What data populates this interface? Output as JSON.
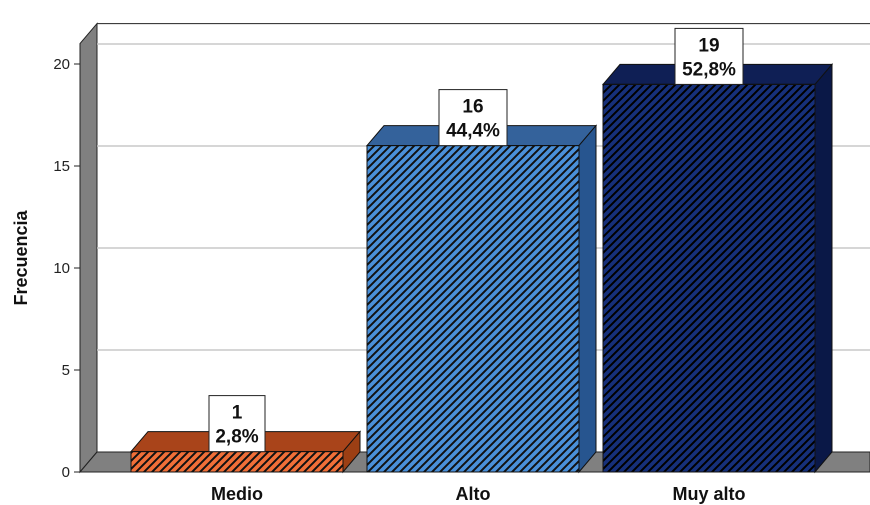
{
  "chart_data": {
    "type": "bar",
    "title": "",
    "xlabel": "",
    "ylabel": "Frecuencia",
    "ylim": [
      0,
      21
    ],
    "yticks": [
      0,
      5,
      10,
      15,
      20
    ],
    "grid": true,
    "style": "3d-hatched",
    "categories": [
      "Medio",
      "Alto",
      "Muy alto"
    ],
    "values": [
      1,
      16,
      19
    ],
    "labels": [
      {
        "count": "1",
        "percent": "2,8%"
      },
      {
        "count": "16",
        "percent": "44,4%"
      },
      {
        "count": "19",
        "percent": "52,8%"
      }
    ],
    "colors": [
      {
        "front": "#f06f38",
        "side": "#9c3f14",
        "top": "#a9441a"
      },
      {
        "front": "#4a90d9",
        "side": "#27558f",
        "top": "#34629b"
      },
      {
        "front": "#16307a",
        "side": "#0a1847",
        "top": "#0f1f55"
      }
    ],
    "wall_color": "#808080"
  }
}
